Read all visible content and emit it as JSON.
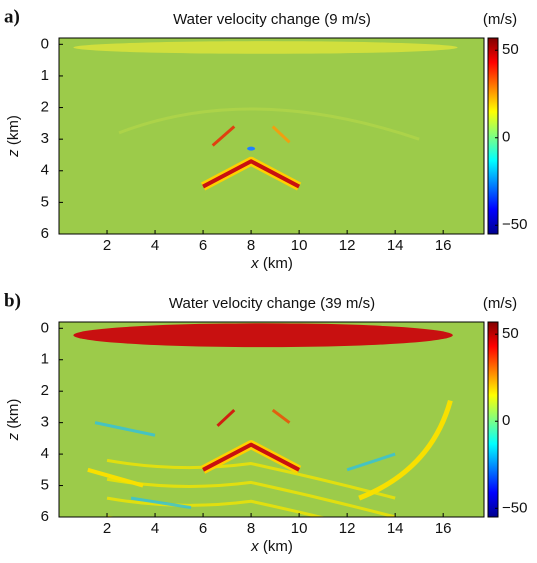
{
  "chart_data": [
    {
      "type": "heatmap",
      "panel_label": "a)",
      "title": "Water velocity change (9 m/s)",
      "colorbar_label": "(m/s)",
      "xlabel_symbol": "x",
      "xlabel_unit": "(km)",
      "ylabel_symbol": "z",
      "ylabel_unit": "(km)",
      "xlim": [
        0,
        17.7
      ],
      "xticks": [
        2,
        4,
        6,
        8,
        10,
        12,
        14,
        16
      ],
      "ylim": [
        -0.2,
        6
      ],
      "yticks": [
        0,
        1,
        2,
        3,
        4,
        5,
        6
      ],
      "clim": [
        -55,
        57
      ],
      "cticks": [
        50,
        0,
        {
          "value": -50,
          "label": "−50"
        }
      ],
      "colormap": "jet"
    },
    {
      "type": "heatmap",
      "panel_label": "b)",
      "title": "Water velocity change (39 m/s)",
      "colorbar_label": "(m/s)",
      "xlabel_symbol": "x",
      "xlabel_unit": "(km)",
      "ylabel_symbol": "z",
      "ylabel_unit": "(km)",
      "xlim": [
        0,
        17.7
      ],
      "xticks": [
        2,
        4,
        6,
        8,
        10,
        12,
        14,
        16
      ],
      "ylim": [
        -0.2,
        6
      ],
      "yticks": [
        0,
        1,
        2,
        3,
        4,
        5,
        6
      ],
      "clim": [
        -55,
        57
      ],
      "cticks": [
        50,
        0,
        {
          "value": -50,
          "label": "−50"
        }
      ],
      "colormap": "jet"
    }
  ]
}
